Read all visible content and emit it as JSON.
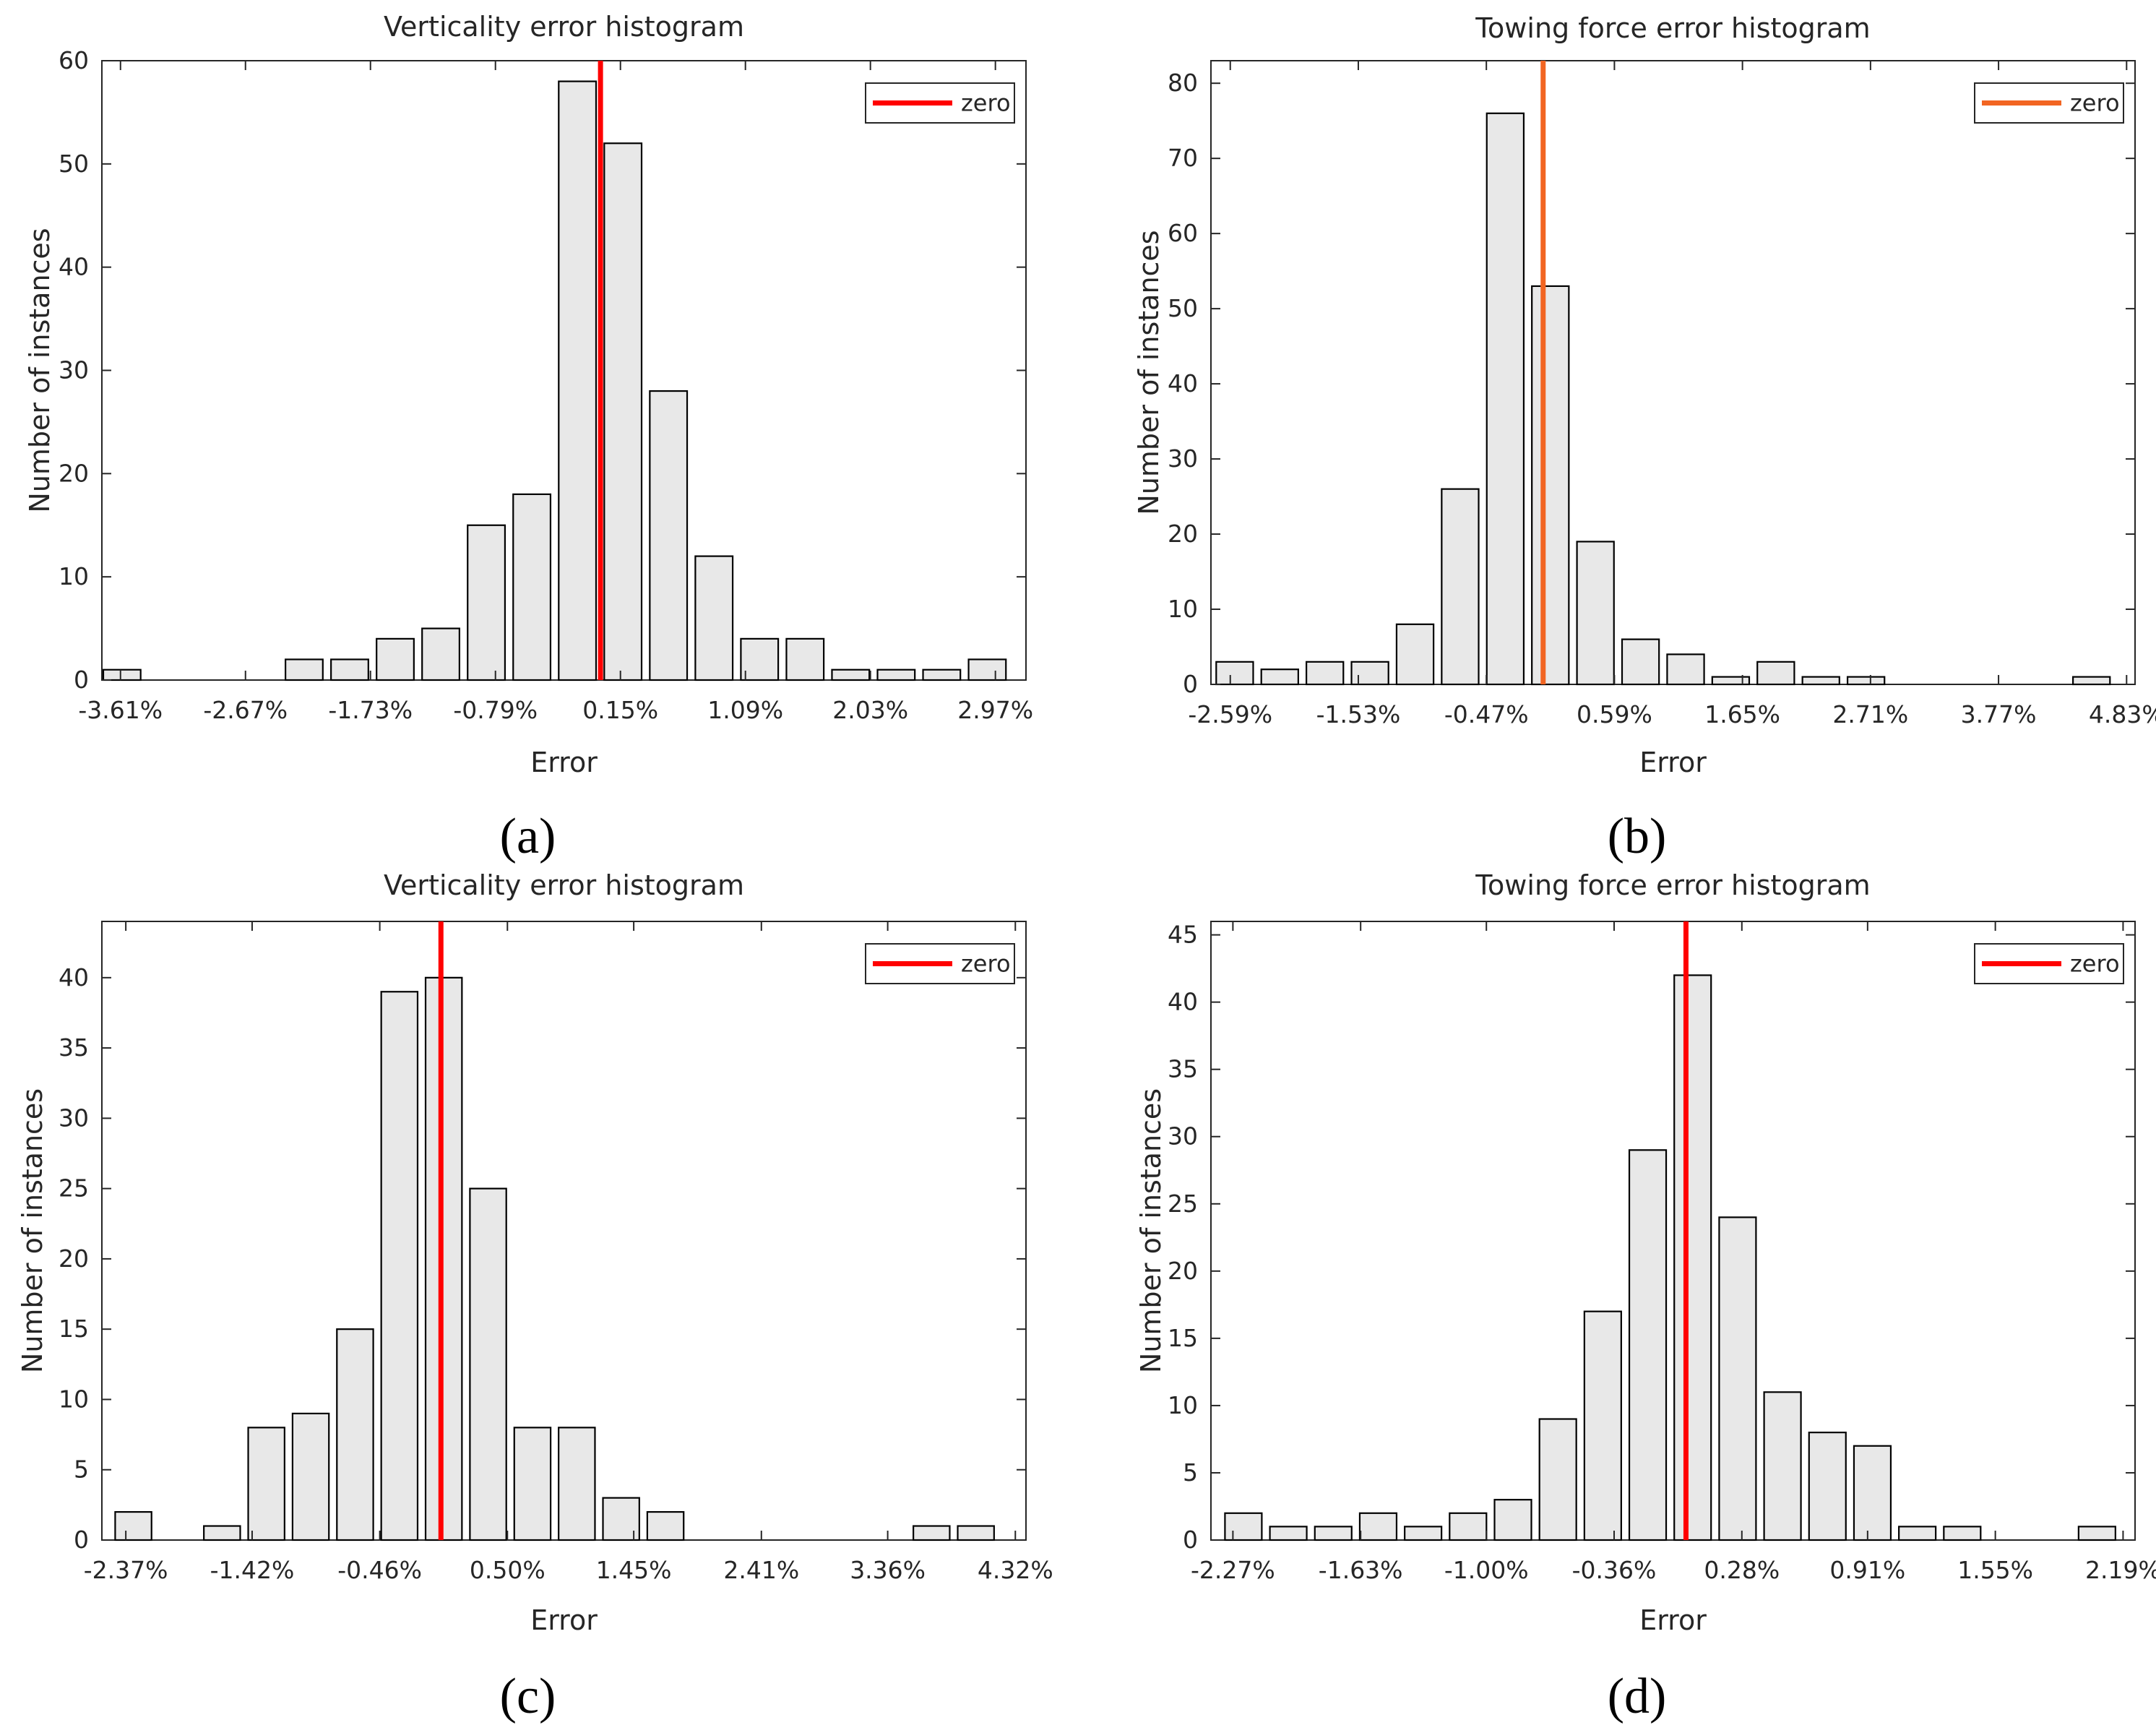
{
  "chart_data": [
    {
      "type": "bar",
      "panel_label": "(a)",
      "title": "Verticality error histogram",
      "xlabel": "Error",
      "ylabel": "Number of instances",
      "xlim": [
        -3.75,
        3.2
      ],
      "ylim": [
        0,
        60
      ],
      "yticks": [
        0,
        10,
        20,
        30,
        40,
        50,
        60
      ],
      "xtick_values": [
        -3.61,
        -2.67,
        -1.73,
        -0.79,
        0.15,
        1.09,
        2.03,
        2.97
      ],
      "xtick_labels": [
        "-3.61%",
        "-2.67%",
        "-1.73%",
        "-0.79%",
        "0.15%",
        "1.09%",
        "2.03%",
        "2.97%"
      ],
      "bin_start": -3.77,
      "bin_width": 0.3425,
      "values": [
        1,
        0,
        0,
        0,
        2,
        2,
        4,
        5,
        15,
        18,
        58,
        52,
        28,
        12,
        4,
        4,
        1,
        1,
        1,
        2
      ],
      "zero_line": {
        "x": 0.0,
        "color": "#ff0000"
      },
      "legend": {
        "label": "zero",
        "position": "top-right"
      }
    },
    {
      "type": "bar",
      "panel_label": "(b)",
      "title": "Towing force error histogram",
      "xlabel": "Error",
      "ylabel": "Number of instances",
      "xlim": [
        -2.75,
        4.9
      ],
      "ylim": [
        0,
        83
      ],
      "yticks": [
        0,
        10,
        20,
        30,
        40,
        50,
        60,
        70,
        80
      ],
      "xtick_values": [
        -2.59,
        -1.53,
        -0.47,
        0.59,
        1.65,
        2.71,
        3.77,
        4.83
      ],
      "xtick_labels": [
        "-2.59%",
        "-1.53%",
        "-0.47%",
        "0.59%",
        "1.65%",
        "2.71%",
        "3.77%",
        "4.83%"
      ],
      "bin_start": -2.74,
      "bin_width": 0.3733,
      "values": [
        3,
        2,
        3,
        3,
        8,
        26,
        76,
        53,
        19,
        6,
        4,
        1,
        3,
        1,
        1,
        0,
        0,
        0,
        0,
        1
      ],
      "zero_line": {
        "x": 0.0,
        "color": "#f26522"
      },
      "legend": {
        "label": "zero",
        "position": "top-right"
      }
    },
    {
      "type": "bar",
      "panel_label": "(c)",
      "title": "Verticality error histogram",
      "xlabel": "Error",
      "ylabel": "Number of instances",
      "xlim": [
        -2.55,
        4.4
      ],
      "ylim": [
        0,
        44
      ],
      "yticks": [
        0,
        5,
        10,
        15,
        20,
        25,
        30,
        35,
        40
      ],
      "xtick_values": [
        -2.37,
        -1.42,
        -0.46,
        0.5,
        1.45,
        2.41,
        3.36,
        4.32
      ],
      "xtick_labels": [
        "-2.37%",
        "-1.42%",
        "-0.46%",
        "0.50%",
        "1.45%",
        "2.41%",
        "3.36%",
        "4.32%"
      ],
      "bin_start": -2.48,
      "bin_width": 0.3335,
      "values": [
        2,
        0,
        1,
        8,
        9,
        15,
        39,
        40,
        25,
        8,
        8,
        3,
        2,
        0,
        0,
        0,
        0,
        0,
        1,
        1
      ],
      "zero_line": {
        "x": 0.0,
        "color": "#ff0000"
      },
      "legend": {
        "label": "zero",
        "position": "top-right"
      }
    },
    {
      "type": "bar",
      "panel_label": "(d)",
      "title": "Towing force error histogram",
      "xlabel": "Error",
      "ylabel": "Number of instances",
      "xlim": [
        -2.38,
        2.25
      ],
      "ylim": [
        0,
        46
      ],
      "yticks": [
        0,
        5,
        10,
        15,
        20,
        25,
        30,
        35,
        40,
        45
      ],
      "xtick_values": [
        -2.27,
        -1.63,
        -1.0,
        -0.36,
        0.28,
        0.91,
        1.55,
        2.19
      ],
      "xtick_labels": [
        "-2.27%",
        "-1.63%",
        "-1.00%",
        "-0.36%",
        "0.28%",
        "0.91%",
        "1.55%",
        "2.19%"
      ],
      "bin_start": -2.33,
      "bin_width": 0.2251,
      "values": [
        2,
        1,
        1,
        2,
        1,
        2,
        3,
        9,
        17,
        29,
        42,
        24,
        11,
        8,
        7,
        1,
        1,
        0,
        0,
        1
      ],
      "zero_line": {
        "x": 0.0,
        "color": "#ff0000"
      },
      "legend": {
        "label": "zero",
        "position": "top-right"
      }
    }
  ]
}
